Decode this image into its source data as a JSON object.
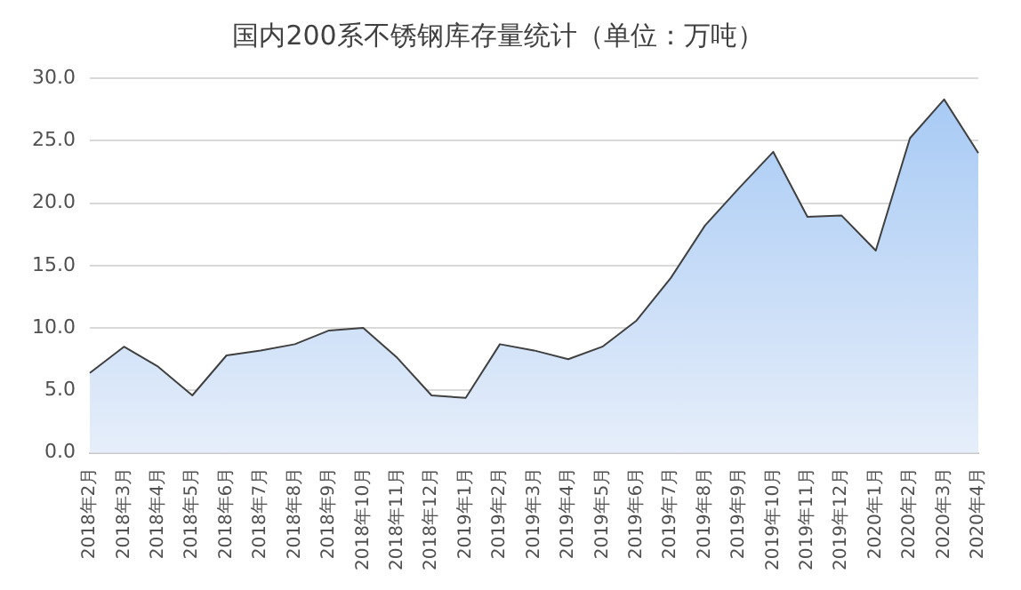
{
  "chart_data": {
    "type": "area",
    "title": "国内200系不锈钢库存量统计（单位：万吨）",
    "categories": [
      "2018年2月",
      "2018年3月",
      "2018年4月",
      "2018年5月",
      "2018年6月",
      "2018年7月",
      "2018年8月",
      "2018年9月",
      "2018年10月",
      "2018年11月",
      "2018年12月",
      "2019年1月",
      "2019年2月",
      "2019年3月",
      "2019年4月",
      "2019年5月",
      "2019年6月",
      "2019年7月",
      "2019年8月",
      "2019年9月",
      "2019年10月",
      "2019年11月",
      "2019年12月",
      "2020年1月",
      "2020年2月",
      "2020年3月",
      "2020年4月"
    ],
    "series": [
      {
        "color": "#a4c8f4",
        "values": [
          6.4,
          8.5,
          6.9,
          4.6,
          7.8,
          8.2,
          8.7,
          9.8,
          10.0,
          7.6,
          4.6,
          4.4,
          8.7,
          8.2,
          7.5,
          8.5,
          10.6,
          14.0,
          18.2,
          21.2,
          24.1,
          18.9,
          19.0,
          16.2,
          25.2,
          28.3,
          24.0
        ]
      }
    ],
    "ylim": [
      0,
      30
    ],
    "yticks": [
      {
        "value": 0,
        "label": "0.0"
      },
      {
        "value": 5,
        "label": "5.0"
      },
      {
        "value": 10,
        "label": "10.0"
      },
      {
        "value": 15,
        "label": "15.0"
      },
      {
        "value": 20,
        "label": "20.0"
      },
      {
        "value": 25,
        "label": "25.0"
      },
      {
        "value": 30,
        "label": "30.0"
      }
    ],
    "grid": "y",
    "legend": false
  }
}
